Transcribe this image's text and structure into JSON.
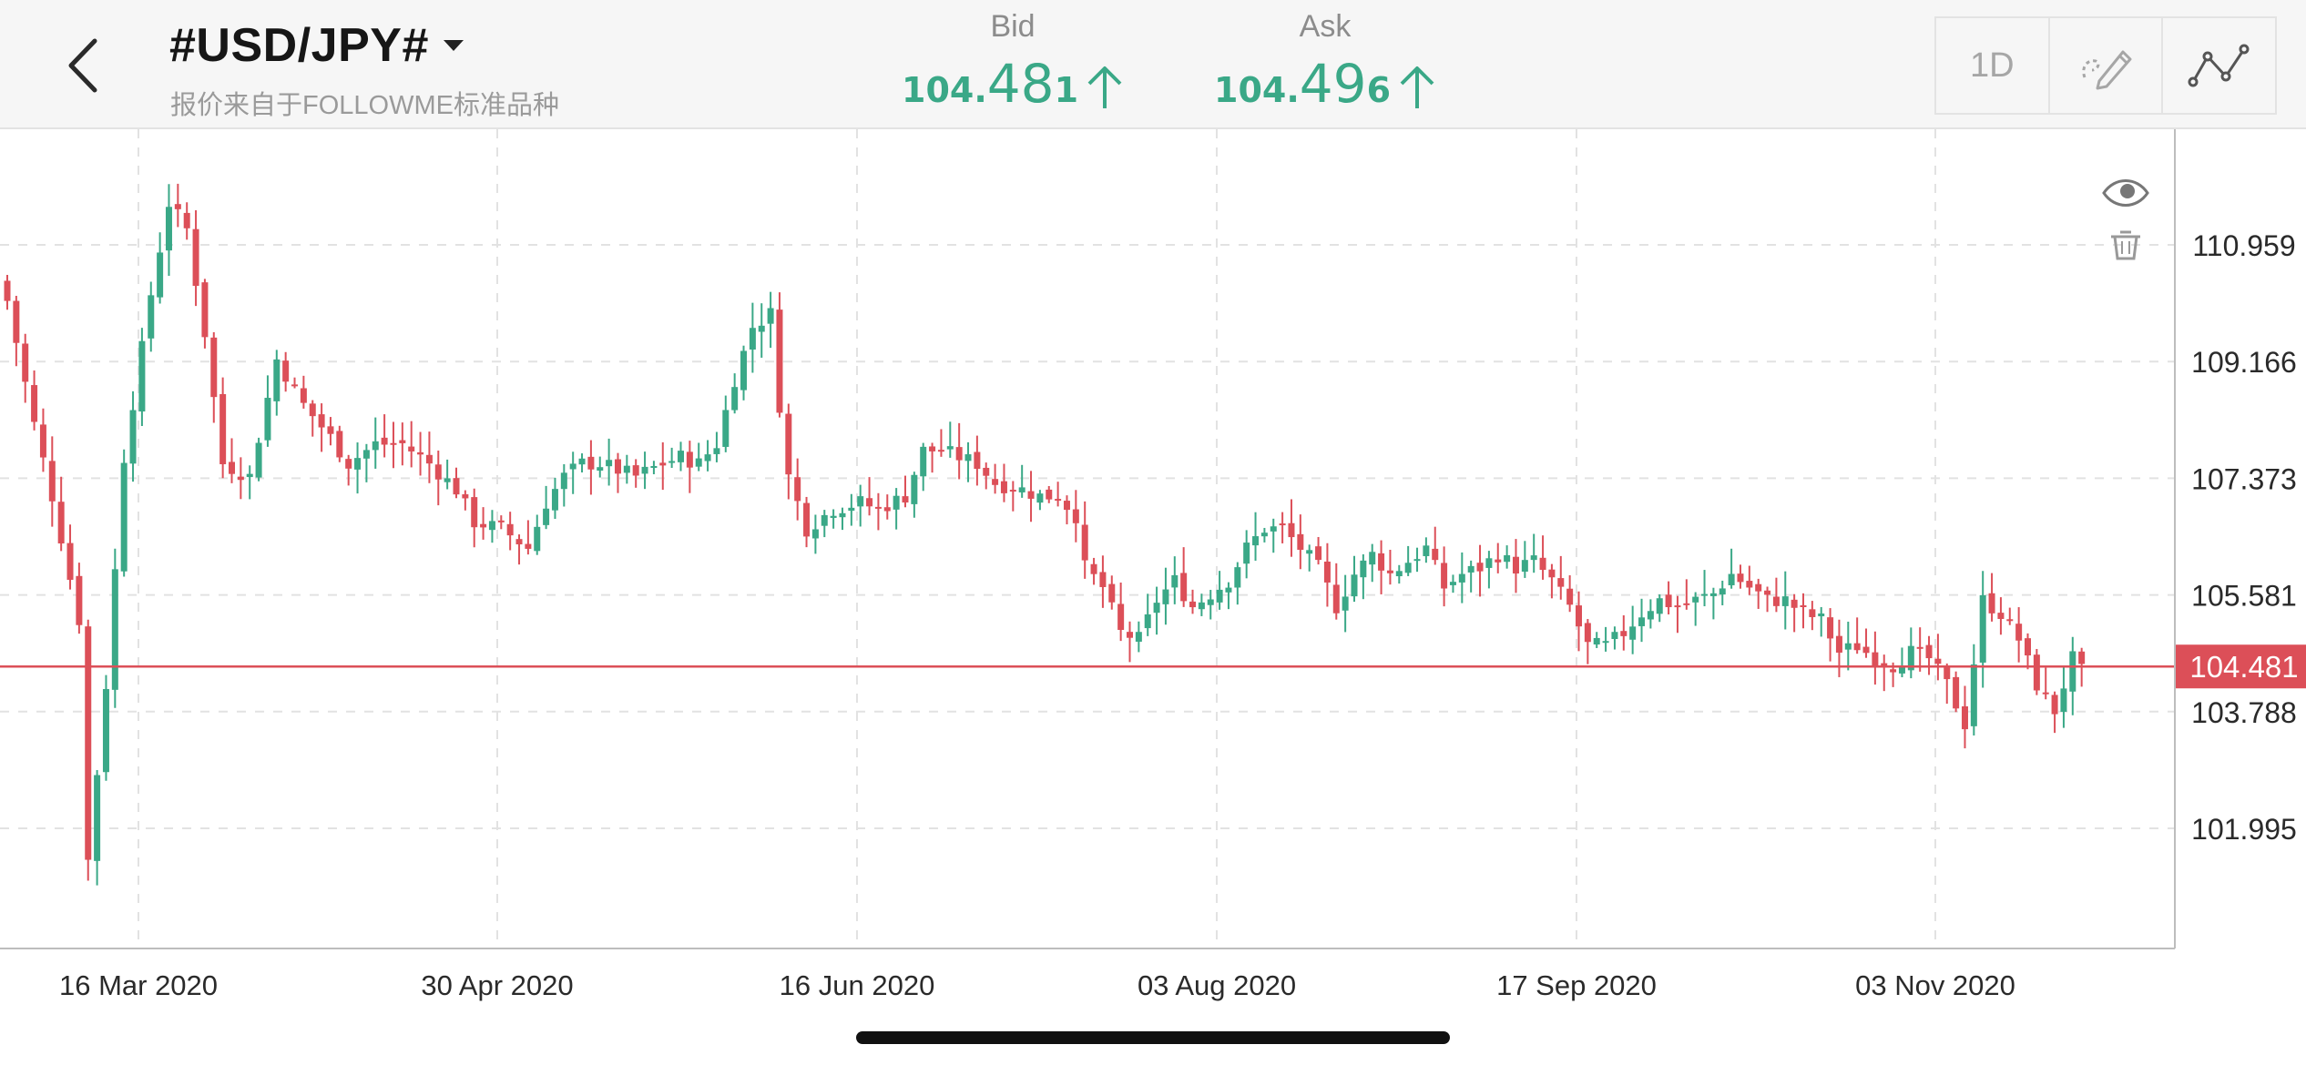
{
  "header": {
    "symbol": "#USD/JPY#",
    "subtitle": "报价来自于FOLLOWME标准品种",
    "bid": {
      "label": "Bid",
      "main": "104.",
      "big": "48",
      "small": "1"
    },
    "ask": {
      "label": "Ask",
      "main": "104.",
      "big": "49",
      "small": "6"
    },
    "period": "1D",
    "icons": {
      "back": "back-chevron-icon",
      "draw": "draw-pen-icon",
      "indicator": "line-indicator-icon",
      "visibility": "eye-icon",
      "delete": "trash-icon"
    }
  },
  "colors": {
    "up": "#3aa887",
    "down": "#dc4f58",
    "current_line": "#dc4f58",
    "grid": "#e2e2e2"
  },
  "chart_data": {
    "type": "candlestick",
    "current_price": 104.481,
    "y_ticks": [
      110.959,
      109.166,
      107.373,
      105.581,
      103.788,
      101.995
    ],
    "x_ticks": [
      "16 Mar 2020",
      "30 Apr 2020",
      "16 Jun 2020",
      "03 Aug 2020",
      "17 Sep 2020",
      "03 Nov 2020"
    ],
    "close_path": [
      [
        0,
        110.1
      ],
      [
        3,
        108.2
      ],
      [
        5,
        107.1
      ],
      [
        8,
        105.2
      ],
      [
        9,
        101.5
      ],
      [
        11,
        104.2
      ],
      [
        13,
        107.7
      ],
      [
        16,
        110.2
      ],
      [
        18,
        111.6
      ],
      [
        20,
        111.2
      ],
      [
        22,
        109.6
      ],
      [
        24,
        107.6
      ],
      [
        27,
        107.4
      ],
      [
        30,
        109.2
      ],
      [
        33,
        108.5
      ],
      [
        36,
        108.0
      ],
      [
        38,
        107.6
      ],
      [
        41,
        107.9
      ],
      [
        44,
        107.9
      ],
      [
        47,
        107.6
      ],
      [
        50,
        107.2
      ],
      [
        52,
        106.7
      ],
      [
        55,
        106.6
      ],
      [
        58,
        106.3
      ],
      [
        60,
        107.0
      ],
      [
        62,
        107.4
      ],
      [
        64,
        107.6
      ],
      [
        66,
        107.6
      ],
      [
        70,
        107.4
      ],
      [
        73,
        107.6
      ],
      [
        75,
        107.7
      ],
      [
        77,
        107.6
      ],
      [
        79,
        107.9
      ],
      [
        81,
        108.9
      ],
      [
        83,
        109.7
      ],
      [
        85,
        109.9
      ],
      [
        86,
        108.5
      ],
      [
        87,
        107.4
      ],
      [
        89,
        106.6
      ],
      [
        92,
        106.9
      ],
      [
        95,
        107.0
      ],
      [
        97,
        106.9
      ],
      [
        100,
        107.1
      ],
      [
        102,
        107.8
      ],
      [
        104,
        107.8
      ],
      [
        106,
        107.7
      ],
      [
        108,
        107.6
      ],
      [
        110,
        107.3
      ],
      [
        113,
        107.2
      ],
      [
        115,
        107.1
      ],
      [
        117,
        107.1
      ],
      [
        119,
        106.8
      ],
      [
        120,
        106.0
      ],
      [
        122,
        105.7
      ],
      [
        124,
        105.0
      ],
      [
        126,
        104.9
      ],
      [
        128,
        105.5
      ],
      [
        130,
        105.8
      ],
      [
        132,
        105.4
      ],
      [
        134,
        105.6
      ],
      [
        136,
        105.8
      ],
      [
        138,
        106.3
      ],
      [
        140,
        106.6
      ],
      [
        142,
        106.6
      ],
      [
        144,
        106.3
      ],
      [
        146,
        106.0
      ],
      [
        148,
        105.4
      ],
      [
        150,
        105.9
      ],
      [
        152,
        106.2
      ],
      [
        154,
        105.9
      ],
      [
        156,
        106.1
      ],
      [
        158,
        106.3
      ],
      [
        160,
        105.7
      ],
      [
        162,
        105.9
      ],
      [
        164,
        106.0
      ],
      [
        166,
        106.2
      ],
      [
        168,
        106.0
      ],
      [
        170,
        106.1
      ],
      [
        172,
        105.8
      ],
      [
        174,
        105.4
      ],
      [
        176,
        104.8
      ],
      [
        178,
        104.8
      ],
      [
        180,
        105.0
      ],
      [
        182,
        105.3
      ],
      [
        184,
        105.5
      ],
      [
        186,
        105.4
      ],
      [
        188,
        105.5
      ],
      [
        190,
        105.6
      ],
      [
        192,
        105.9
      ],
      [
        194,
        105.7
      ],
      [
        196,
        105.5
      ],
      [
        198,
        105.5
      ],
      [
        200,
        105.3
      ],
      [
        202,
        105.2
      ],
      [
        204,
        104.7
      ],
      [
        206,
        104.8
      ],
      [
        208,
        104.6
      ],
      [
        210,
        104.5
      ],
      [
        212,
        104.7
      ],
      [
        214,
        104.6
      ],
      [
        216,
        104.2
      ],
      [
        218,
        103.6
      ],
      [
        220,
        105.5
      ],
      [
        222,
        105.3
      ],
      [
        224,
        104.9
      ],
      [
        226,
        104.2
      ],
      [
        228,
        103.8
      ],
      [
        230,
        104.6
      ],
      [
        231,
        104.4
      ]
    ]
  }
}
